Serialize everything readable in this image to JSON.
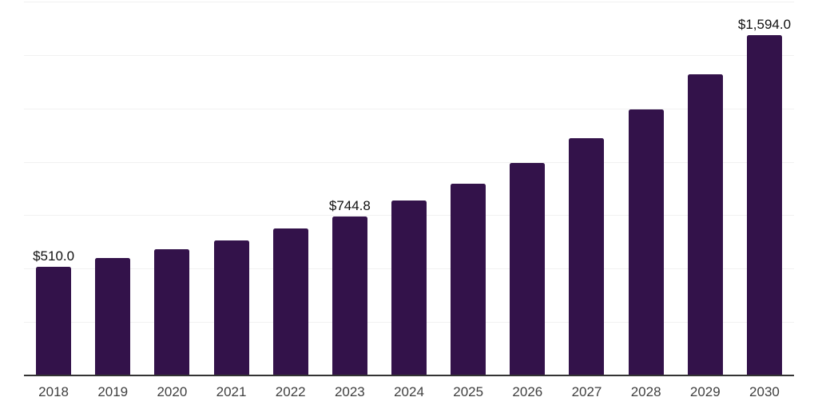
{
  "chart": {
    "background": "#FFFFFF"
  },
  "chart_data": {
    "type": "bar",
    "categories": [
      "2018",
      "2019",
      "2020",
      "2021",
      "2022",
      "2023",
      "2024",
      "2025",
      "2026",
      "2027",
      "2028",
      "2029",
      "2030"
    ],
    "values": [
      510.0,
      550,
      591,
      632,
      688,
      744.8,
      819,
      897,
      995,
      1110,
      1245,
      1410,
      1594.0
    ],
    "data_labels": [
      "$510.0",
      "",
      "",
      "",
      "",
      "$744.8",
      "",
      "",
      "",
      "",
      "",
      "",
      "$1,594.0"
    ],
    "title": "",
    "xlabel": "",
    "ylabel": "",
    "ylim": [
      0,
      1750
    ],
    "gridline_step": 250,
    "grid": "horizontal",
    "y_axis_labels_visible": false,
    "legend": "none",
    "colors": {
      "bar": "#33124A",
      "axis_line": "#333333",
      "gridline": "#F1F1F1",
      "tick_label": "#3F3F3F",
      "data_label": "#111111"
    }
  }
}
